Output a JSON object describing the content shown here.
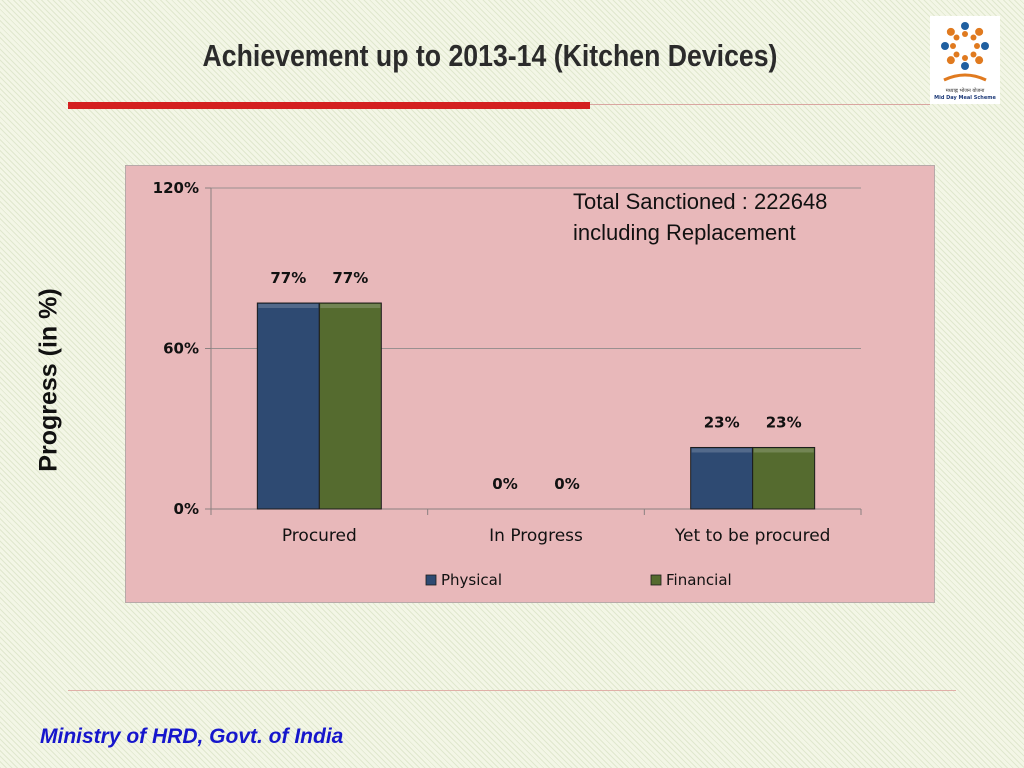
{
  "slide": {
    "title": "Achievement up to 2013-14 (Kitchen Devices)",
    "footer": "Ministry of HRD, Govt. of India",
    "logo": {
      "text_hindi": "मध्याह्न भोजन योजना",
      "text_english": "Mid Day Meal Scheme"
    }
  },
  "chart_data": {
    "type": "bar",
    "categories": [
      "Procured",
      "In Progress",
      "Yet to be procured"
    ],
    "series": [
      {
        "name": "Physical",
        "values": [
          77,
          0,
          23
        ],
        "labels": [
          "77%",
          "0%",
          "23%"
        ],
        "color": "#2e4a72"
      },
      {
        "name": "Financial",
        "values": [
          77,
          0,
          23
        ],
        "labels": [
          "77%",
          "0%",
          "23%"
        ],
        "color": "#556b2f"
      }
    ],
    "ylabel": "Progress (in %)",
    "ylim": [
      0,
      120
    ],
    "yticks": [
      0,
      60,
      120
    ],
    "ytick_labels": [
      "0%",
      "60%",
      "120%"
    ],
    "grid": true,
    "legend": "bottom",
    "annotation": [
      "Total Sanctioned : 222648",
      "including Replacement"
    ]
  },
  "colors": {
    "chart_background": "#e8b8ba",
    "title_rule": "#d42020",
    "footer_text": "#1616cc"
  }
}
